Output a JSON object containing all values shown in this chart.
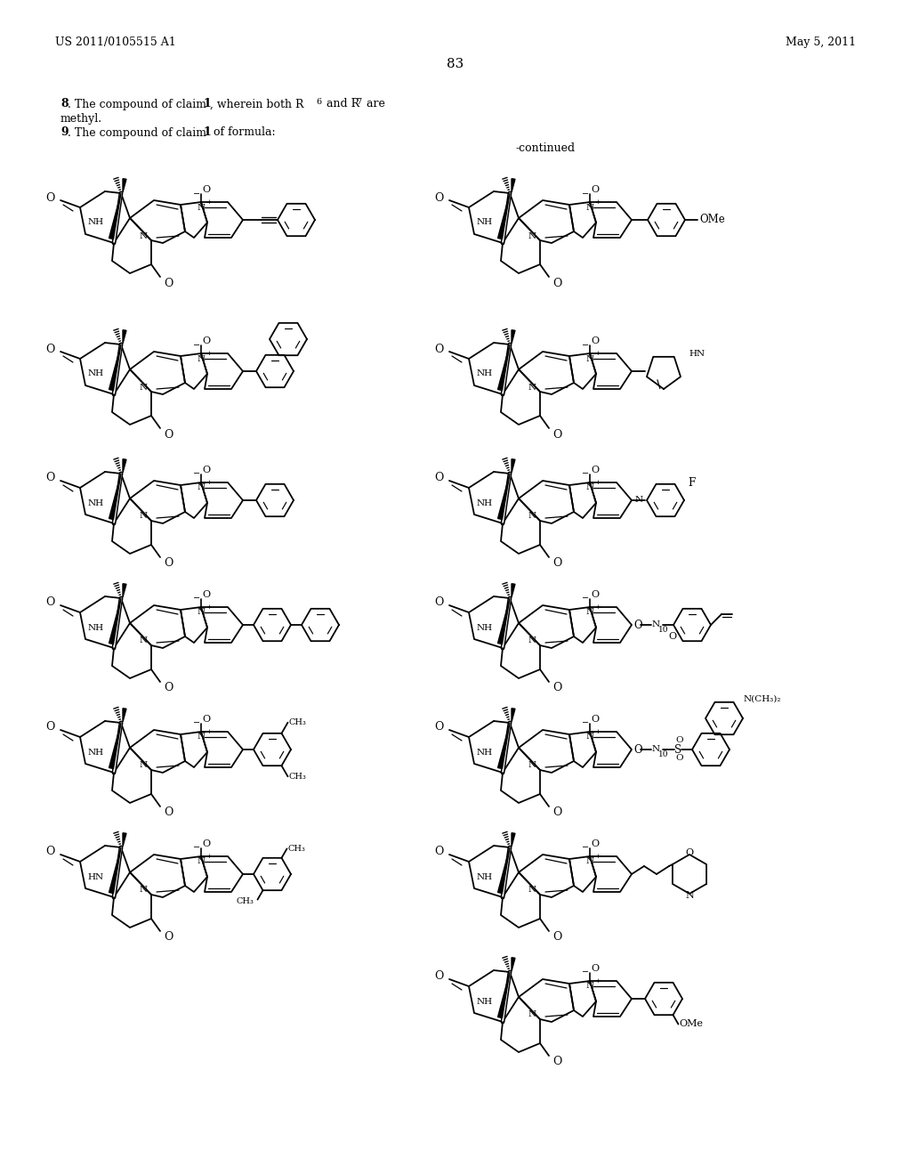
{
  "background_color": "#ffffff",
  "page_number": "83",
  "header_left": "US 2011/0105515 A1",
  "header_right": "May 5, 2011",
  "continued_label": "-continued",
  "figsize": [
    10.24,
    13.2
  ],
  "dpi": 100
}
